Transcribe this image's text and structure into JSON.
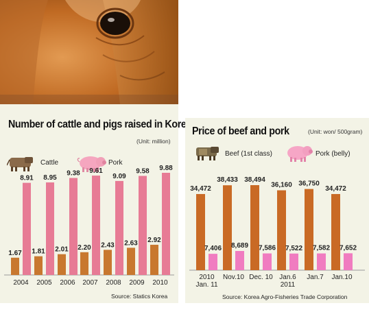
{
  "chart_data": [
    {
      "type": "bar",
      "title": "Number of cattle and pigs raised in Korea",
      "unit": "(Unit: million)",
      "categories": [
        "2004",
        "2005",
        "2006",
        "2007",
        "2008",
        "2009",
        "2010"
      ],
      "series": [
        {
          "name": "Cattle",
          "values": [
            1.67,
            1.81,
            2.01,
            2.2,
            2.43,
            2.63,
            2.92
          ],
          "labels": [
            "1.67",
            "1.81",
            "2.01",
            "2.20",
            "2.43",
            "2.63",
            "2.92"
          ],
          "color": "#c8782f"
        },
        {
          "name": "Pork",
          "values": [
            8.91,
            8.95,
            9.38,
            9.61,
            9.09,
            9.58,
            9.88
          ],
          "labels": [
            "8.91",
            "8.95",
            "9.38",
            "9.61",
            "9.09",
            "9.58",
            "9.88"
          ],
          "color": "#e77b95"
        }
      ],
      "source": "Source: Statics Korea"
    },
    {
      "type": "bar",
      "title": "Price of beef and pork",
      "unit": "(Unit: won/ 500gram)",
      "categories": [
        [
          "2010",
          "Jan. 11"
        ],
        [
          "Nov.10"
        ],
        [
          "Dec. 10"
        ],
        [
          "Jan.6",
          "2011"
        ],
        [
          "Jan.7"
        ],
        [
          "Jan.10"
        ]
      ],
      "series": [
        {
          "name": "Beef (1st class)",
          "values": [
            34472,
            38433,
            38494,
            36160,
            36750,
            34472
          ],
          "labels": [
            "34,472",
            "38,433",
            "38,494",
            "36,160",
            "36,750",
            "34,472"
          ],
          "color": "#c96a25"
        },
        {
          "name": "Pork (belly)",
          "values": [
            7406,
            8689,
            7586,
            7522,
            7582,
            7652
          ],
          "labels": [
            "7,406",
            "8,689",
            "7,586",
            "7,522",
            "7,582",
            "7,652"
          ],
          "color": "#f07cc0"
        }
      ],
      "source": "Source: Korea Agro-Fisheries Trade Corporation"
    }
  ],
  "icons": {
    "cattle": "cow-icon",
    "pork": "pig-icon"
  }
}
